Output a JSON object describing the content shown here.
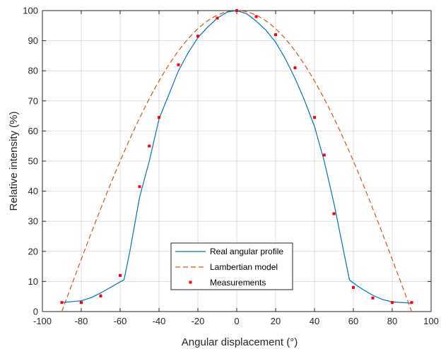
{
  "chart_data": {
    "type": "line",
    "xlabel": "Angular displacement (°)",
    "ylabel": "Relative intensity (%)",
    "xlim": [
      -100,
      100
    ],
    "ylim": [
      0,
      100
    ],
    "xticks": [
      -100,
      -80,
      -60,
      -40,
      -20,
      0,
      20,
      40,
      60,
      80,
      100
    ],
    "yticks": [
      0,
      10,
      20,
      30,
      40,
      50,
      60,
      70,
      80,
      90,
      100
    ],
    "x_tick_labels": [
      "-100",
      "-80",
      "-60",
      "-40",
      "-20",
      "0",
      "20",
      "40",
      "60",
      "80",
      "100"
    ],
    "y_tick_labels": [
      "0",
      "10",
      "20",
      "30",
      "40",
      "50",
      "60",
      "70",
      "80",
      "90",
      "100"
    ],
    "grid": true,
    "legend_position": "bottom-center",
    "series": [
      {
        "name": "Real angular profile",
        "style": "solid",
        "color": "#0072BD",
        "x": [
          -90,
          -85,
          -80,
          -75,
          -70,
          -65,
          -61,
          -58,
          -55,
          -50,
          -45,
          -40,
          -35,
          -30,
          -25,
          -20,
          -15,
          -10,
          -5,
          0,
          5,
          10,
          15,
          20,
          25,
          30,
          35,
          40,
          45,
          50,
          55,
          58,
          61,
          65,
          70,
          75,
          80,
          85,
          90
        ],
        "y": [
          3.0,
          3.3,
          3.6,
          4.6,
          6.2,
          8.0,
          9.5,
          10.5,
          20.0,
          38.0,
          50.0,
          64.0,
          72.0,
          80.0,
          86.0,
          91.0,
          94.5,
          97.5,
          99.5,
          100.0,
          99.0,
          96.5,
          93.5,
          89.5,
          84.0,
          77.5,
          70.0,
          61.5,
          50.0,
          36.0,
          20.0,
          10.5,
          9.0,
          7.3,
          5.4,
          4.0,
          3.2,
          3.0,
          2.8
        ]
      },
      {
        "name": "Lambertian model",
        "style": "dashed",
        "color": "#D95319"
      },
      {
        "name": "Measurements",
        "style": "markers",
        "color": "#FF0000",
        "x": [
          -90,
          -80,
          -70,
          -60,
          -50,
          -45,
          -40,
          -30,
          -20,
          -10,
          0,
          10,
          20,
          30,
          40,
          45,
          50,
          60,
          70,
          80,
          90
        ],
        "y": [
          3.0,
          3.0,
          5.2,
          12.0,
          41.5,
          55.0,
          64.5,
          82.0,
          91.5,
          97.5,
          100.0,
          98.0,
          92.0,
          81.0,
          64.5,
          52.0,
          32.5,
          8.0,
          4.5,
          3.0,
          3.0
        ]
      }
    ]
  }
}
